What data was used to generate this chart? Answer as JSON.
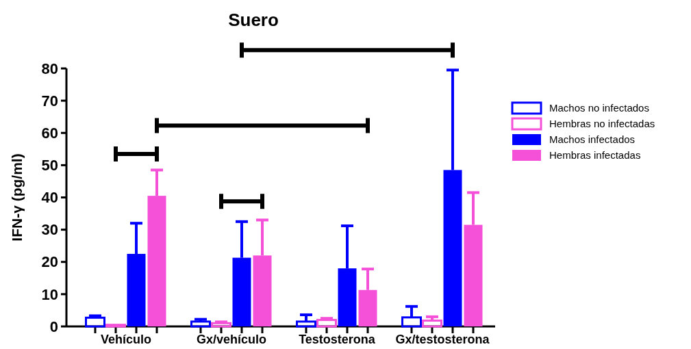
{
  "chart_data": {
    "type": "bar",
    "title": "Suero",
    "ylabel": "IFN-γ (pg/ml)",
    "categories": [
      "Vehículo",
      "Gx/vehículo",
      "Testosterona",
      "Gx/testosterona"
    ],
    "series": [
      {
        "name": "Machos no infectados",
        "color": "#0000ff",
        "values": [
          2.7,
          1.5,
          1.5,
          2.8
        ],
        "errors": [
          [
            2.7,
            3.3
          ],
          [
            1.5,
            2.2
          ],
          [
            1.5,
            3.6
          ],
          [
            2.8,
            6.2
          ]
        ]
      },
      {
        "name": "Hembras no infectadas",
        "color": "#f550d8",
        "values": [
          0.5,
          1.0,
          2.0,
          1.8
        ],
        "errors": [
          null,
          [
            1.0,
            1.4
          ],
          [
            2.0,
            2.5
          ],
          [
            1.8,
            3.0
          ]
        ]
      },
      {
        "name": "Machos infectados",
        "color": "#0000ff",
        "values": [
          22.5,
          21.3,
          18.0,
          48.5
        ],
        "errors": [
          [
            22.5,
            32.0
          ],
          [
            21.3,
            32.5
          ],
          [
            18.0,
            31.2
          ],
          [
            48.5,
            79.5
          ]
        ]
      },
      {
        "name": "Hembras infectadas",
        "color": "#f550d8",
        "values": [
          40.5,
          22.0,
          11.3,
          31.5
        ],
        "errors": [
          [
            40.5,
            48.5
          ],
          [
            22.0,
            33.0
          ],
          [
            11.3,
            17.8
          ],
          [
            31.5,
            41.5
          ]
        ]
      }
    ],
    "ylim": [
      0,
      80
    ],
    "yticks": [
      0,
      10,
      20,
      30,
      40,
      50,
      60,
      70,
      80
    ],
    "grid": false,
    "legend": "right"
  }
}
